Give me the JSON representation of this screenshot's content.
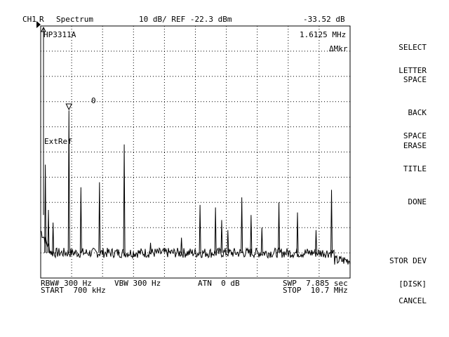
{
  "header": {
    "channel": "CH1",
    "trace": "R",
    "mode": "Spectrum",
    "scale": "10 dB/ REF -22.3 dBm",
    "marker_level": "-33.52 dB"
  },
  "overlay": {
    "instrument": "HP3311A",
    "marker_freq": "1.6125 MHz",
    "marker_type": "ΔMkr",
    "ext_ref": "ExtRef",
    "marker_index": "0"
  },
  "footer": {
    "rbw": "RBW# 300 Hz",
    "vbw": "VBW 300 Hz",
    "atn": "ATN  0 dB",
    "swp": "SWP  7.885 sec",
    "start": "START  700 kHz",
    "stop": "STOP  10.7 MHz"
  },
  "softkeys": [
    {
      "line1": "SELECT",
      "line2": "LETTER"
    },
    {
      "line1": "SPACE",
      "line2": ""
    },
    {
      "line1": "BACK",
      "line2": "SPACE"
    },
    {
      "line1": "ERASE",
      "line2": "TITLE"
    },
    {
      "line1": "DONE",
      "line2": ""
    },
    {
      "line1": "STOR DEV",
      "line2": "[DISK]"
    },
    {
      "line1": "CANCEL",
      "line2": ""
    }
  ],
  "chart_data": {
    "type": "line",
    "title": "Spectrum",
    "x_unit": "MHz",
    "xlim": [
      0.7,
      10.7
    ],
    "y_unit": "dB",
    "ylabel": "10 dB/div",
    "ylim": [
      -100,
      0
    ],
    "grid": true,
    "noise_floor": -90,
    "peaks": [
      {
        "x": 0.85,
        "y": -55
      },
      {
        "x": 0.95,
        "y": -73
      },
      {
        "x": 1.1,
        "y": -78
      },
      {
        "x": 1.6125,
        "y": -33.52
      },
      {
        "x": 2.0,
        "y": -64
      },
      {
        "x": 2.6,
        "y": -62
      },
      {
        "x": 3.4,
        "y": -47
      },
      {
        "x": 4.25,
        "y": -86
      },
      {
        "x": 5.25,
        "y": -84
      },
      {
        "x": 5.85,
        "y": -71
      },
      {
        "x": 6.35,
        "y": -72
      },
      {
        "x": 6.55,
        "y": -77
      },
      {
        "x": 6.75,
        "y": -81
      },
      {
        "x": 7.2,
        "y": -68
      },
      {
        "x": 7.5,
        "y": -75
      },
      {
        "x": 7.85,
        "y": -80
      },
      {
        "x": 8.4,
        "y": -70
      },
      {
        "x": 9.0,
        "y": -74
      },
      {
        "x": 9.6,
        "y": -81
      },
      {
        "x": 10.1,
        "y": -65
      }
    ]
  }
}
